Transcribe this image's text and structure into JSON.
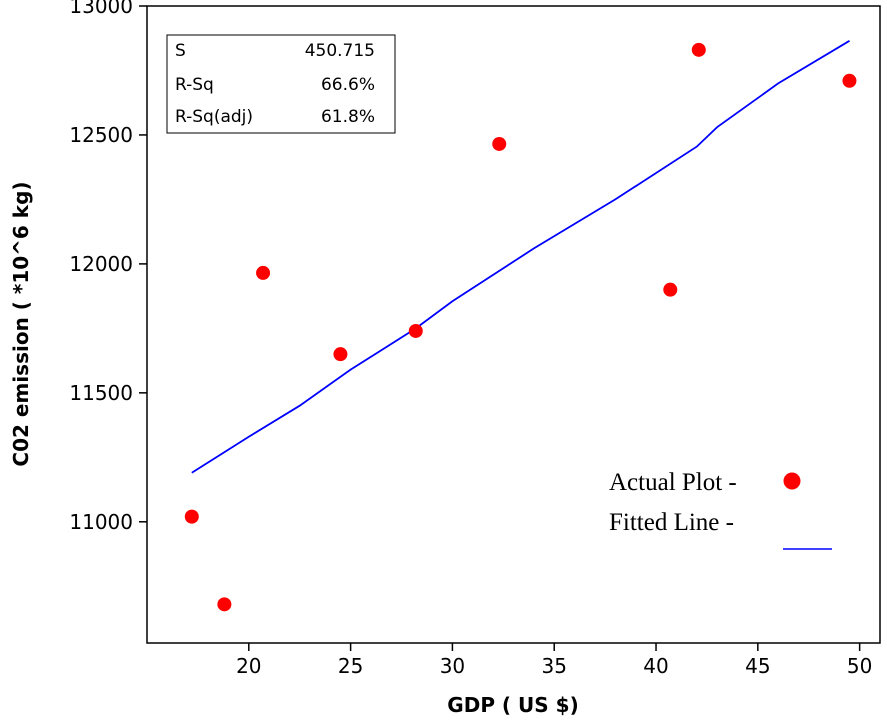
{
  "chart_data": {
    "type": "scatter",
    "xlabel": "GDP ( US $)",
    "ylabel": "C02 emission ( *10^6 kg)",
    "xlim": [
      15,
      51
    ],
    "ylim": [
      10530,
      13000
    ],
    "x_ticks": [
      20,
      25,
      30,
      35,
      40,
      45,
      50
    ],
    "y_ticks": [
      11000,
      11500,
      12000,
      12500,
      13000
    ],
    "grid": false,
    "series": [
      {
        "name": "Actual Plot",
        "kind": "points",
        "color": "#ff0000",
        "points": [
          {
            "x": 17.2,
            "y": 11020
          },
          {
            "x": 18.8,
            "y": 10680
          },
          {
            "x": 20.7,
            "y": 11965
          },
          {
            "x": 24.5,
            "y": 11650
          },
          {
            "x": 28.2,
            "y": 11740
          },
          {
            "x": 32.3,
            "y": 12465
          },
          {
            "x": 40.7,
            "y": 11900
          },
          {
            "x": 42.1,
            "y": 12830
          },
          {
            "x": 49.5,
            "y": 12710
          }
        ]
      },
      {
        "name": "Fitted Line",
        "kind": "line",
        "color": "#0000ff",
        "points": [
          {
            "x": 17.2,
            "y": 11190
          },
          {
            "x": 20,
            "y": 11330
          },
          {
            "x": 22.5,
            "y": 11450
          },
          {
            "x": 25,
            "y": 11590
          },
          {
            "x": 28.2,
            "y": 11750
          },
          {
            "x": 30,
            "y": 11855
          },
          {
            "x": 34,
            "y": 12060
          },
          {
            "x": 38,
            "y": 12250
          },
          {
            "x": 42,
            "y": 12455
          },
          {
            "x": 43,
            "y": 12530
          },
          {
            "x": 46,
            "y": 12700
          },
          {
            "x": 49.5,
            "y": 12865
          }
        ]
      }
    ],
    "stats_box": {
      "rows": [
        {
          "label": "S",
          "value": "450.715"
        },
        {
          "label": "R-Sq",
          "value": "66.6%"
        },
        {
          "label": "R-Sq(adj)",
          "value": "61.8%"
        }
      ]
    },
    "legend": {
      "placement": "bottom-right",
      "items": [
        {
          "label": "Actual Plot -",
          "marker": "circle"
        },
        {
          "label": "Fitted Line -",
          "marker": "line"
        }
      ]
    }
  }
}
